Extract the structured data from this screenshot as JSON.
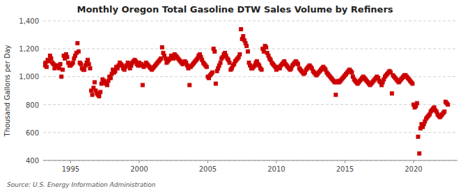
{
  "chart_data": {
    "type": "scatter",
    "title": "Monthly Oregon Total Gasoline DTW Sales Volume by Refiners",
    "y_label": "Thousand Gallons per Day",
    "annotations": [
      "Source: U.S. Energy Information Administration"
    ],
    "color": "#CC0000",
    "marker": "square",
    "grid": true,
    "xlim": [
      1993.0,
      2023.2
    ],
    "xticks": [
      1995,
      2000,
      2005,
      2010,
      2015,
      2020
    ],
    "ylim": [
      400,
      1400
    ],
    "yticks": [
      400,
      600,
      800,
      {
        "value": 1000,
        "label": "1,000"
      },
      {
        "value": 1200,
        "label": "1,200"
      },
      {
        "value": 1400,
        "label": "1,400"
      }
    ],
    "x": [
      1993.0,
      1993.08,
      1993.17,
      1993.25,
      1993.33,
      1993.42,
      1993.5,
      1993.58,
      1993.67,
      1993.75,
      1993.83,
      1993.92,
      1994.0,
      1994.08,
      1994.17,
      1994.25,
      1994.33,
      1994.42,
      1994.5,
      1994.58,
      1994.67,
      1994.75,
      1994.83,
      1994.92,
      1995.0,
      1995.08,
      1995.17,
      1995.25,
      1995.33,
      1995.42,
      1995.5,
      1995.58,
      1995.67,
      1995.75,
      1995.83,
      1995.92,
      1996.0,
      1996.08,
      1996.17,
      1996.25,
      1996.33,
      1996.42,
      1996.5,
      1996.58,
      1996.67,
      1996.75,
      1996.83,
      1996.92,
      1997.0,
      1997.08,
      1997.17,
      1997.25,
      1997.33,
      1997.42,
      1997.5,
      1997.58,
      1997.67,
      1997.75,
      1997.83,
      1997.92,
      1998.0,
      1998.08,
      1998.17,
      1998.25,
      1998.33,
      1998.42,
      1998.5,
      1998.58,
      1998.67,
      1998.75,
      1998.83,
      1998.92,
      1999.0,
      1999.08,
      1999.17,
      1999.25,
      1999.33,
      1999.42,
      1999.5,
      1999.58,
      1999.67,
      1999.75,
      1999.83,
      1999.92,
      2000.0,
      2000.08,
      2000.17,
      2000.25,
      2000.33,
      2000.42,
      2000.5,
      2000.58,
      2000.67,
      2000.75,
      2000.83,
      2000.92,
      2001.0,
      2001.08,
      2001.17,
      2001.25,
      2001.33,
      2001.42,
      2001.5,
      2001.58,
      2001.67,
      2001.75,
      2001.83,
      2001.92,
      2002.0,
      2002.08,
      2002.17,
      2002.25,
      2002.33,
      2002.42,
      2002.5,
      2002.58,
      2002.67,
      2002.75,
      2002.83,
      2002.92,
      2003.0,
      2003.08,
      2003.17,
      2003.25,
      2003.33,
      2003.42,
      2003.5,
      2003.58,
      2003.67,
      2003.75,
      2003.83,
      2003.92,
      2004.0,
      2004.08,
      2004.17,
      2004.25,
      2004.33,
      2004.42,
      2004.5,
      2004.58,
      2004.67,
      2004.75,
      2004.83,
      2004.92,
      2005.0,
      2005.08,
      2005.17,
      2005.25,
      2005.33,
      2005.42,
      2005.5,
      2005.58,
      2005.67,
      2005.75,
      2005.83,
      2005.92,
      2006.0,
      2006.08,
      2006.17,
      2006.25,
      2006.33,
      2006.42,
      2006.5,
      2006.58,
      2006.67,
      2006.75,
      2006.83,
      2006.92,
      2007.0,
      2007.08,
      2007.17,
      2007.25,
      2007.33,
      2007.42,
      2007.5,
      2007.58,
      2007.67,
      2007.75,
      2007.83,
      2007.92,
      2008.0,
      2008.08,
      2008.17,
      2008.25,
      2008.33,
      2008.42,
      2008.5,
      2008.58,
      2008.67,
      2008.75,
      2008.83,
      2008.92,
      2009.0,
      2009.08,
      2009.17,
      2009.25,
      2009.33,
      2009.42,
      2009.5,
      2009.58,
      2009.67,
      2009.75,
      2009.83,
      2009.92,
      2010.0,
      2010.08,
      2010.17,
      2010.25,
      2010.33,
      2010.42,
      2010.5,
      2010.58,
      2010.67,
      2010.75,
      2010.83,
      2010.92,
      2011.0,
      2011.08,
      2011.17,
      2011.25,
      2011.33,
      2011.42,
      2011.5,
      2011.58,
      2011.67,
      2011.75,
      2011.83,
      2011.92,
      2012.0,
      2012.08,
      2012.17,
      2012.25,
      2012.33,
      2012.42,
      2012.5,
      2012.58,
      2012.67,
      2012.75,
      2012.83,
      2012.92,
      2013.0,
      2013.08,
      2013.17,
      2013.25,
      2013.33,
      2013.42,
      2013.5,
      2013.58,
      2013.67,
      2013.75,
      2013.83,
      2013.92,
      2014.0,
      2014.08,
      2014.17,
      2014.25,
      2014.33,
      2014.42,
      2014.5,
      2014.58,
      2014.67,
      2014.75,
      2014.83,
      2014.92,
      2015.0,
      2015.08,
      2015.17,
      2015.25,
      2015.33,
      2015.42,
      2015.5,
      2015.58,
      2015.67,
      2015.75,
      2015.83,
      2015.92,
      2016.0,
      2016.08,
      2016.17,
      2016.25,
      2016.33,
      2016.42,
      2016.5,
      2016.58,
      2016.67,
      2016.75,
      2016.83,
      2016.92,
      2017.0,
      2017.08,
      2017.17,
      2017.25,
      2017.33,
      2017.42,
      2017.5,
      2017.58,
      2017.67,
      2017.75,
      2017.83,
      2017.92,
      2018.0,
      2018.08,
      2018.17,
      2018.25,
      2018.33,
      2018.42,
      2018.5,
      2018.58,
      2018.67,
      2018.75,
      2018.83,
      2018.92,
      2019.0,
      2019.08,
      2019.17,
      2019.25,
      2019.33,
      2019.42,
      2019.5,
      2019.58,
      2019.67,
      2019.75,
      2019.83,
      2019.92,
      2020.0,
      2020.08,
      2020.17,
      2020.25,
      2020.33,
      2020.42,
      2020.5,
      2020.58,
      2020.67,
      2020.75,
      2020.83,
      2020.92,
      2021.0,
      2021.08,
      2021.17,
      2021.25,
      2021.33,
      2021.42,
      2021.5,
      2021.58,
      2021.67,
      2021.75,
      2021.83,
      2021.92,
      2022.0,
      2022.08,
      2022.17,
      2022.25,
      2022.33,
      2022.42,
      2022.5
    ],
    "values": [
      1090,
      1080,
      1100,
      1070,
      1120,
      1110,
      1150,
      1130,
      1100,
      1090,
      1060,
      1080,
      1080,
      1070,
      1060,
      1090,
      1000,
      1050,
      1150,
      1130,
      1160,
      1140,
      1100,
      1080,
      1080,
      1090,
      1100,
      1130,
      1150,
      1170,
      1240,
      1180,
      1100,
      1090,
      1060,
      1050,
      1050,
      1080,
      1100,
      1120,
      1090,
      1060,
      900,
      870,
      920,
      960,
      900,
      880,
      870,
      860,
      890,
      950,
      980,
      970,
      960,
      950,
      940,
      970,
      1000,
      990,
      1020,
      1050,
      1030,
      1040,
      1070,
      1060,
      1080,
      1100,
      1090,
      1080,
      1060,
      1050,
      1070,
      1080,
      1100,
      1090,
      1060,
      1080,
      1100,
      1110,
      1120,
      1110,
      1090,
      1080,
      1100,
      1080,
      1090,
      940,
      1070,
      1080,
      1100,
      1090,
      1080,
      1070,
      1060,
      1050,
      1060,
      1070,
      1080,
      1090,
      1100,
      1110,
      1120,
      1130,
      1210,
      1170,
      1150,
      1130,
      1100,
      1110,
      1120,
      1130,
      1150,
      1140,
      1130,
      1160,
      1150,
      1140,
      1130,
      1120,
      1110,
      1100,
      1090,
      1100,
      1110,
      1100,
      1080,
      1060,
      940,
      1070,
      1080,
      1090,
      1100,
      1110,
      1120,
      1130,
      1150,
      1160,
      1140,
      1120,
      1100,
      1090,
      1080,
      1070,
      1000,
      990,
      1010,
      1020,
      1030,
      1200,
      1180,
      950,
      1040,
      1060,
      1080,
      1100,
      1130,
      1140,
      1160,
      1170,
      1150,
      1130,
      1120,
      1100,
      1050,
      1060,
      1080,
      1090,
      1110,
      1120,
      1130,
      1140,
      1160,
      1340,
      1270,
      1290,
      1260,
      1240,
      1220,
      1180,
      1100,
      1080,
      1060,
      1060,
      1070,
      1080,
      1100,
      1110,
      1090,
      1080,
      1060,
      1050,
      1200,
      1180,
      1220,
      1210,
      1170,
      1150,
      1130,
      1120,
      1100,
      1090,
      1080,
      1070,
      1050,
      1060,
      1070,
      1060,
      1080,
      1090,
      1100,
      1110,
      1090,
      1080,
      1070,
      1060,
      1050,
      1060,
      1080,
      1090,
      1100,
      1110,
      1100,
      1090,
      1060,
      1050,
      1040,
      1030,
      1020,
      1030,
      1050,
      1060,
      1070,
      1080,
      1070,
      1060,
      1040,
      1030,
      1020,
      1010,
      1020,
      1030,
      1040,
      1050,
      1060,
      1070,
      1060,
      1050,
      1030,
      1020,
      1010,
      1000,
      990,
      980,
      970,
      960,
      870,
      960,
      970,
      960,
      970,
      980,
      990,
      1000,
      1010,
      1020,
      1030,
      1040,
      1050,
      1040,
      1030,
      1000,
      980,
      970,
      960,
      950,
      960,
      970,
      980,
      990,
      1000,
      990,
      980,
      970,
      960,
      950,
      940,
      950,
      960,
      970,
      980,
      990,
      1000,
      990,
      970,
      960,
      940,
      960,
      980,
      1000,
      1010,
      1020,
      1030,
      1040,
      1030,
      880,
      1010,
      1000,
      990,
      980,
      970,
      960,
      970,
      980,
      990,
      1000,
      1010,
      1010,
      1000,
      990,
      980,
      970,
      960,
      950,
      800,
      780,
      790,
      810,
      570,
      450,
      630,
      660,
      640,
      660,
      680,
      700,
      710,
      720,
      730,
      750,
      760,
      770,
      780,
      760,
      750,
      730,
      720,
      710,
      720,
      730,
      740,
      750,
      820,
      810,
      800
    ]
  }
}
